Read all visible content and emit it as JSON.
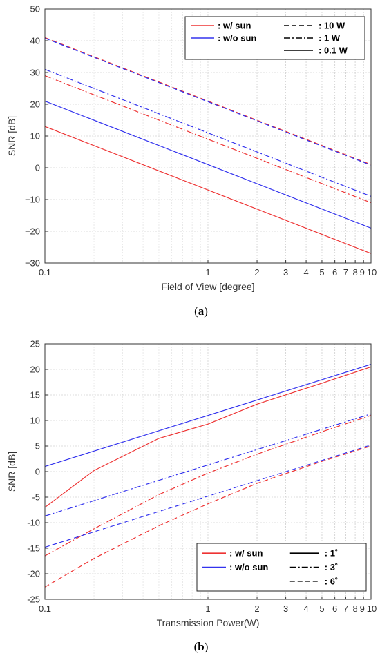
{
  "chart_data": [
    {
      "type": "line",
      "caption": "a",
      "xlabel": "Field of View [degree]",
      "ylabel": "SNR [dB]",
      "x_scale": "log",
      "xlim": [
        0.1,
        10
      ],
      "ylim": [
        -30,
        50
      ],
      "x_ticks": [
        0.1,
        1,
        2,
        3,
        4,
        5,
        6,
        7,
        8,
        9,
        10
      ],
      "x_tick_labels": [
        "0.1",
        "1",
        "2",
        "3",
        "4",
        "5",
        "6",
        "7",
        "8",
        "9",
        "10"
      ],
      "y_ticks": [
        -30,
        -20,
        -10,
        0,
        10,
        20,
        30,
        40,
        50
      ],
      "y_tick_labels": [
        "−30",
        "−20",
        "−10",
        "0",
        "10",
        "20",
        "30",
        "40",
        "50"
      ],
      "grid": true,
      "legend_position": "top-right",
      "legend": {
        "colors": [
          {
            "label": ": w/   sun",
            "color": "#ee3333"
          },
          {
            "label": ": w/o sun",
            "color": "#3333ee"
          }
        ],
        "styles": [
          {
            "label": ": 10 W",
            "dash": "dashed"
          },
          {
            "label": ":  1 W",
            "dash": "dashdot"
          },
          {
            "label": ": 0.1 W",
            "dash": "solid"
          }
        ]
      },
      "series": [
        {
          "color": "#ee3333",
          "dash": "dashed",
          "x": [
            0.1,
            10
          ],
          "y": [
            41,
            1
          ]
        },
        {
          "color": "#3333ee",
          "dash": "dashed",
          "x": [
            0.1,
            10
          ],
          "y": [
            40.8,
            0.8
          ]
        },
        {
          "color": "#3333ee",
          "dash": "dashdot",
          "x": [
            0.1,
            10
          ],
          "y": [
            31,
            -9
          ]
        },
        {
          "color": "#ee3333",
          "dash": "dashdot",
          "x": [
            0.1,
            10
          ],
          "y": [
            29,
            -11
          ]
        },
        {
          "color": "#3333ee",
          "dash": "solid",
          "x": [
            0.1,
            10
          ],
          "y": [
            21,
            -19
          ]
        },
        {
          "color": "#ee3333",
          "dash": "solid",
          "x": [
            0.1,
            10
          ],
          "y": [
            13,
            -27
          ]
        }
      ]
    },
    {
      "type": "line",
      "caption": "b",
      "xlabel": "Transmission Power(W)",
      "ylabel": "SNR [dB]",
      "x_scale": "log",
      "xlim": [
        0.1,
        10
      ],
      "ylim": [
        -25,
        25
      ],
      "x_ticks": [
        0.1,
        1,
        2,
        3,
        4,
        5,
        6,
        7,
        8,
        9,
        10
      ],
      "x_tick_labels": [
        "0.1",
        "1",
        "2",
        "3",
        "4",
        "5",
        "6",
        "7",
        "8",
        "9",
        "10"
      ],
      "y_ticks": [
        -25,
        -20,
        -15,
        -10,
        -5,
        0,
        5,
        10,
        15,
        20,
        25
      ],
      "y_tick_labels": [
        "-25",
        "-20",
        "-15",
        "-10",
        "-5",
        "0",
        "5",
        "10",
        "15",
        "20",
        "25"
      ],
      "grid": true,
      "legend_position": "bottom-right",
      "legend": {
        "colors": [
          {
            "label": ": w/   sun",
            "color": "#ee3333"
          },
          {
            "label": ": w/o sun",
            "color": "#3333ee"
          }
        ],
        "styles": [
          {
            "label": ":  1˚",
            "dash": "solid"
          },
          {
            "label": ":  3˚",
            "dash": "dashdot"
          },
          {
            "label": ":  6˚",
            "dash": "dashed"
          }
        ]
      },
      "series": [
        {
          "color": "#3333ee",
          "dash": "solid",
          "x": [
            0.1,
            10
          ],
          "y": [
            1,
            21
          ]
        },
        {
          "color": "#ee3333",
          "dash": "solid",
          "x": [
            0.1,
            0.2,
            0.5,
            1,
            2,
            5,
            10
          ],
          "y": [
            -7,
            0.2,
            6.5,
            9.3,
            13.2,
            17.3,
            20.5
          ]
        },
        {
          "color": "#3333ee",
          "dash": "dashdot",
          "x": [
            0.1,
            10
          ],
          "y": [
            -8.7,
            11.3
          ]
        },
        {
          "color": "#ee3333",
          "dash": "dashdot",
          "x": [
            0.1,
            0.2,
            0.5,
            1,
            2,
            5,
            10
          ],
          "y": [
            -16.5,
            -11.2,
            -4.5,
            -0.3,
            3.4,
            7.8,
            11
          ]
        },
        {
          "color": "#3333ee",
          "dash": "dashed",
          "x": [
            0.1,
            10
          ],
          "y": [
            -14.8,
            5.2
          ]
        },
        {
          "color": "#ee3333",
          "dash": "dashed",
          "x": [
            0.1,
            0.2,
            0.5,
            1,
            2,
            5,
            10
          ],
          "y": [
            -22.6,
            -17,
            -10.6,
            -6.3,
            -2.3,
            2,
            5
          ]
        }
      ]
    }
  ]
}
